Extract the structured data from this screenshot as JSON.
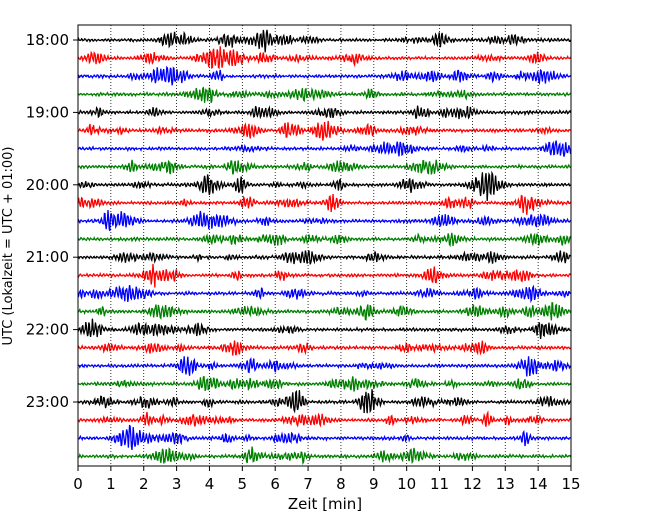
{
  "chart_data": {
    "type": "line",
    "title": "",
    "xlabel": "Zeit  [min]",
    "ylabel": "UTC (Lokalzeit = UTC + 01:00)",
    "xlim": [
      0,
      15
    ],
    "x_ticks": [
      "0",
      "1",
      "2",
      "3",
      "4",
      "5",
      "6",
      "7",
      "8",
      "9",
      "10",
      "11",
      "12",
      "13",
      "14",
      "15"
    ],
    "y_tick_labels": [
      "18:00",
      "19:00",
      "20:00",
      "21:00",
      "22:00",
      "23:00"
    ],
    "y_tick_rows": [
      0,
      4,
      8,
      12,
      16,
      20
    ],
    "row_start_times": [
      "18:00",
      "18:15",
      "18:30",
      "18:45",
      "19:00",
      "19:15",
      "19:30",
      "19:45",
      "20:00",
      "20:15",
      "20:30",
      "20:45",
      "21:00",
      "21:15",
      "21:30",
      "21:45",
      "22:00",
      "22:15",
      "22:30",
      "22:45",
      "23:00",
      "23:15",
      "23:30",
      "23:45"
    ],
    "trace_colors": [
      "#000000",
      "#ff0000",
      "#0000ff",
      "#008000"
    ],
    "grid": {
      "vertical_dotted": true,
      "horizontal": false
    },
    "legend": "none"
  }
}
